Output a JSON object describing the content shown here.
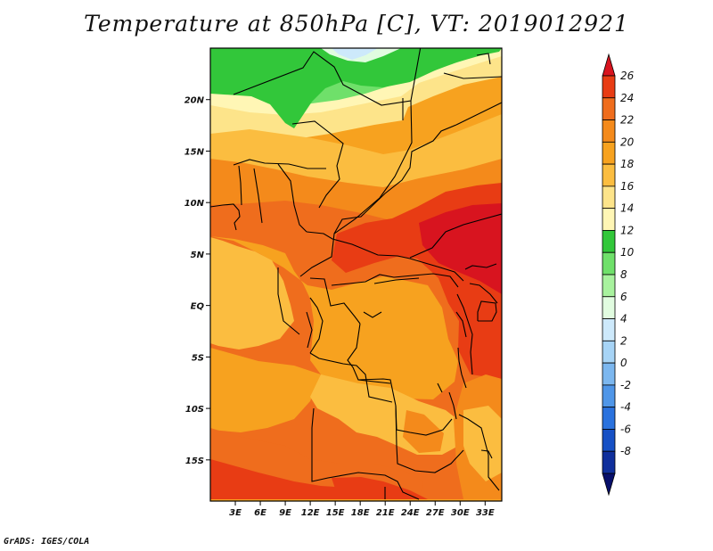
{
  "title": "Temperature at 850hPa [C], VT: 2019012921",
  "credit": "GrADS: IGES/COLA",
  "map": {
    "lon_range": [
      0,
      35
    ],
    "lat_range": [
      -19,
      25
    ],
    "x_ticks": [
      "3E",
      "6E",
      "9E",
      "12E",
      "15E",
      "18E",
      "21E",
      "24E",
      "27E",
      "30E",
      "33E"
    ],
    "y_ticks": [
      "20N",
      "15N",
      "10N",
      "5N",
      "EQ",
      "5S",
      "10S",
      "15S"
    ]
  },
  "colorbar": {
    "labels": [
      "26",
      "24",
      "22",
      "20",
      "18",
      "16",
      "14",
      "12",
      "10",
      "8",
      "6",
      "4",
      "2",
      "0",
      "-2",
      "-4",
      "-6",
      "-8"
    ],
    "colors": [
      "#d8141f",
      "#e83c14",
      "#ef6d1d",
      "#f48a1b",
      "#f7a21f",
      "#fbbd40",
      "#fde48a",
      "#fff6b5",
      "#32c73a",
      "#6fe06a",
      "#a8f29e",
      "#e1fce0",
      "#cde9fb",
      "#a7d4f6",
      "#7cb7ef",
      "#4f96e8",
      "#2a72de",
      "#1650c5",
      "#0f2f9c",
      "#070f6b"
    ]
  }
}
